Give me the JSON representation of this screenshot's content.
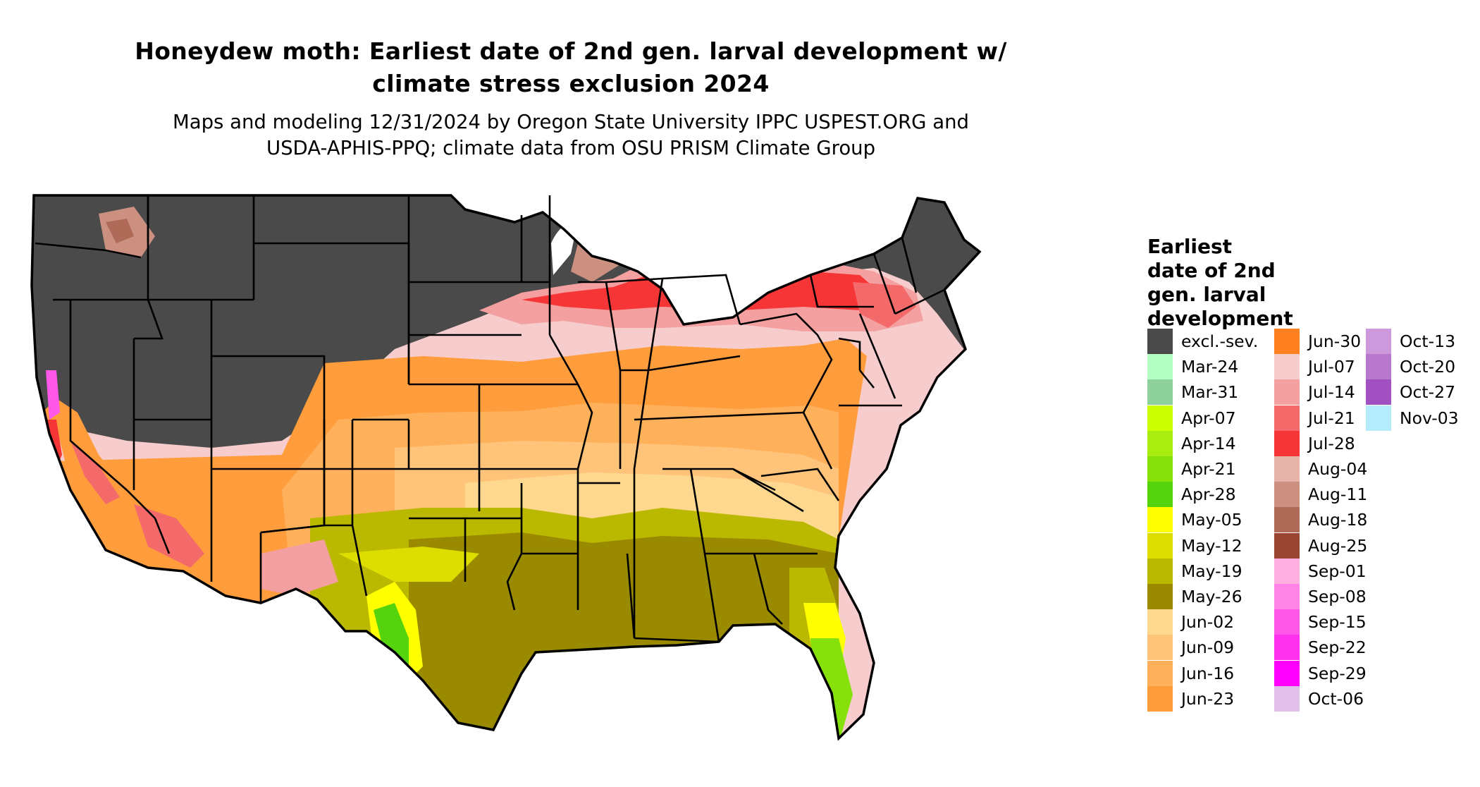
{
  "title_line1": "Honeydew moth: Earliest date of 2nd gen. larval development w/",
  "title_line2": "climate stress exclusion 2024",
  "subtitle_line1": "Maps and modeling 12/31/2024 by Oregon State University IPPC USPEST.ORG and",
  "subtitle_line2": "USDA-APHIS-PPQ; climate data from OSU PRISM Climate Group",
  "legend": {
    "title_lines": [
      "Earliest",
      "date of 2nd",
      "gen. larval",
      "development"
    ],
    "columns": [
      [
        {
          "label": "excl.-sev.",
          "color": "#4a4a4a"
        },
        {
          "label": "Mar-24",
          "color": "#b4ffc4"
        },
        {
          "label": "Mar-31",
          "color": "#8ed19a"
        },
        {
          "label": "Apr-07",
          "color": "#ccff00"
        },
        {
          "label": "Apr-14",
          "color": "#a9ec10"
        },
        {
          "label": "Apr-21",
          "color": "#86e00a"
        },
        {
          "label": "Apr-28",
          "color": "#55d30c"
        },
        {
          "label": "May-05",
          "color": "#ffff00"
        },
        {
          "label": "May-12",
          "color": "#dddd00"
        },
        {
          "label": "May-19",
          "color": "#bbb800"
        },
        {
          "label": "May-26",
          "color": "#9a8a00"
        },
        {
          "label": "Jun-02",
          "color": "#ffd890"
        },
        {
          "label": "Jun-09",
          "color": "#ffc47a"
        },
        {
          "label": "Jun-16",
          "color": "#ffb05a"
        },
        {
          "label": "Jun-23",
          "color": "#ff9c3c"
        }
      ],
      [
        {
          "label": "Jun-30",
          "color": "#ff8020"
        },
        {
          "label": "Jul-07",
          "color": "#f6cccc"
        },
        {
          "label": "Jul-14",
          "color": "#f4a0a0"
        },
        {
          "label": "Jul-21",
          "color": "#f46a6a"
        },
        {
          "label": "Jul-28",
          "color": "#f63636"
        },
        {
          "label": "Aug-04",
          "color": "#e6b4a8"
        },
        {
          "label": "Aug-11",
          "color": "#cc9080"
        },
        {
          "label": "Aug-18",
          "color": "#b06a58"
        },
        {
          "label": "Aug-25",
          "color": "#9a4434"
        },
        {
          "label": "Sep-01",
          "color": "#ffb0e0"
        },
        {
          "label": "Sep-08",
          "color": "#ff84e6"
        },
        {
          "label": "Sep-15",
          "color": "#ff58e8"
        },
        {
          "label": "Sep-22",
          "color": "#ff30ee"
        },
        {
          "label": "Sep-29",
          "color": "#ff00ff"
        },
        {
          "label": "Oct-06",
          "color": "#e0c0ea"
        }
      ],
      [
        {
          "label": "Oct-13",
          "color": "#cc99dd"
        },
        {
          "label": "Oct-20",
          "color": "#b878cc"
        },
        {
          "label": "Oct-27",
          "color": "#a050c0"
        },
        {
          "label": "Nov-03",
          "color": "#b4ecfc"
        }
      ]
    ]
  }
}
